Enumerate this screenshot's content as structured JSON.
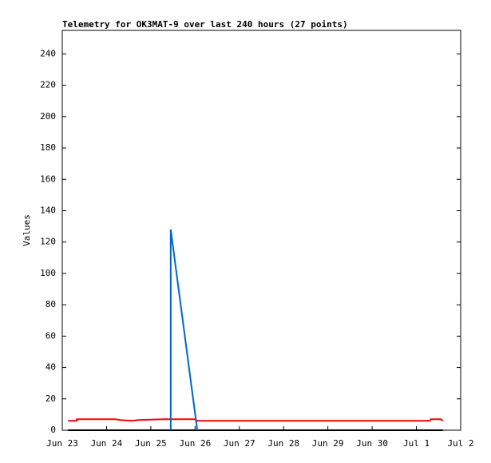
{
  "chart_data": {
    "type": "line",
    "title": "Telemetry for OK3MAT-9 over last 240 hours (27 points)",
    "y_label": "Values",
    "xlim": [
      0,
      9
    ],
    "ylim": [
      0,
      255
    ],
    "xticks": [
      {
        "value": 0,
        "label": "Jun 23"
      },
      {
        "value": 1,
        "label": "Jun 24"
      },
      {
        "value": 2,
        "label": "Jun 25"
      },
      {
        "value": 3,
        "label": "Jun 26"
      },
      {
        "value": 4,
        "label": "Jun 27"
      },
      {
        "value": 5,
        "label": "Jun 28"
      },
      {
        "value": 6,
        "label": "Jun 29"
      },
      {
        "value": 7,
        "label": "Jun 30"
      },
      {
        "value": 8,
        "label": "Jul 1"
      },
      {
        "value": 9,
        "label": "Jul 2"
      }
    ],
    "yticks": [
      0,
      20,
      40,
      60,
      80,
      100,
      120,
      140,
      160,
      180,
      200,
      220,
      240
    ],
    "series": [
      {
        "color": "#000000",
        "x": [
          0.13,
          8.6
        ],
        "values": [
          0,
          0
        ]
      },
      {
        "color": "#ff0000",
        "x": [
          0.13,
          0.33,
          0.33,
          1.2,
          1.3,
          1.6,
          1.7,
          2.3,
          3.0,
          3.05,
          8.3,
          8.33,
          8.55,
          8.6
        ],
        "values": [
          6,
          6,
          7,
          7,
          6.5,
          6,
          6.5,
          7,
          7,
          6,
          6,
          7,
          7,
          6
        ]
      },
      {
        "color": "#0066cc",
        "x": [
          2.45,
          2.45,
          3.05
        ],
        "values": [
          0,
          128,
          0
        ]
      }
    ]
  }
}
